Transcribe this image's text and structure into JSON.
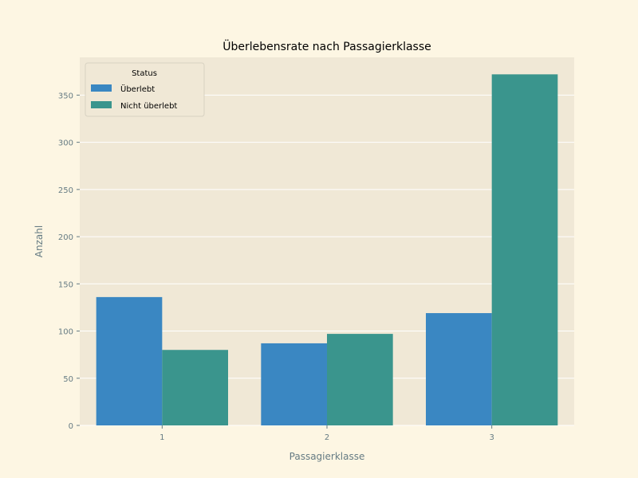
{
  "chart_data": {
    "type": "bar",
    "title": "Überlebensrate nach Passagierklasse",
    "xlabel": "Passagierklasse",
    "ylabel": "Anzahl",
    "categories": [
      "1",
      "2",
      "3"
    ],
    "series": [
      {
        "name": "Überlebt",
        "values": [
          136,
          87,
          119
        ],
        "color": "#3a87c2"
      },
      {
        "name": "Nicht überlebt",
        "values": [
          80,
          97,
          372
        ],
        "color": "#3a958d"
      }
    ],
    "ylim": [
      0,
      390
    ],
    "yticks": [
      0,
      50,
      100,
      150,
      200,
      250,
      300,
      350
    ],
    "grid": true,
    "legend": {
      "title": "Status",
      "placement": "top-left"
    },
    "colors": {
      "figure_background": "#fdf6e3",
      "plot_background": "#f0e8d6",
      "grid": "#ffffff",
      "tick_text": "#657b83"
    }
  }
}
